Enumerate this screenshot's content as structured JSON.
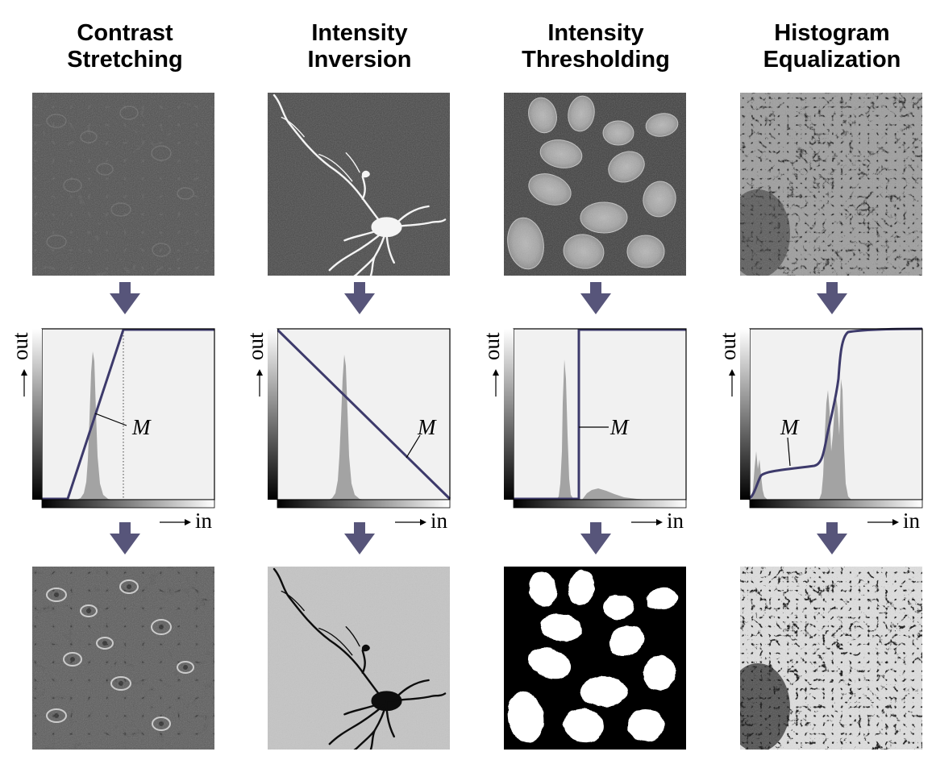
{
  "columns": [
    {
      "id": "contrast-stretching",
      "title_line1": "Contrast",
      "title_line2": "Stretching",
      "mapping_label": "M",
      "image_before": "phase-contrast cells, low contrast",
      "image_after": "phase-contrast cells, high contrast"
    },
    {
      "id": "intensity-inversion",
      "title_line1": "Intensity",
      "title_line2": "Inversion",
      "mapping_label": "M",
      "image_before": "bright neuron on dark background",
      "image_after": "dark neuron on light background"
    },
    {
      "id": "intensity-thresholding",
      "title_line1": "Intensity",
      "title_line2": "Thresholding",
      "mapping_label": "M",
      "image_before": "grey nuclei on dark background",
      "image_after": "binary white nuclei on black"
    },
    {
      "id": "histogram-equalization",
      "title_line1": "Histogram",
      "title_line2": "Equalization",
      "mapping_label": "M",
      "image_before": "tissue texture, low contrast",
      "image_after": "tissue texture, equalized"
    }
  ],
  "axes": {
    "x_label": "in",
    "y_label": "out"
  },
  "colors": {
    "arrow": "#57557a",
    "mapping_curve": "#3d3a6b",
    "histogram": "#a3a3a3",
    "plot_background": "#f1f1f1",
    "thresholded_foreground": "#ffffff",
    "thresholded_background": "#000000"
  },
  "icons": {
    "flow_arrow": "arrow-down-icon",
    "axis_arrow": "arrow-right-icon"
  }
}
